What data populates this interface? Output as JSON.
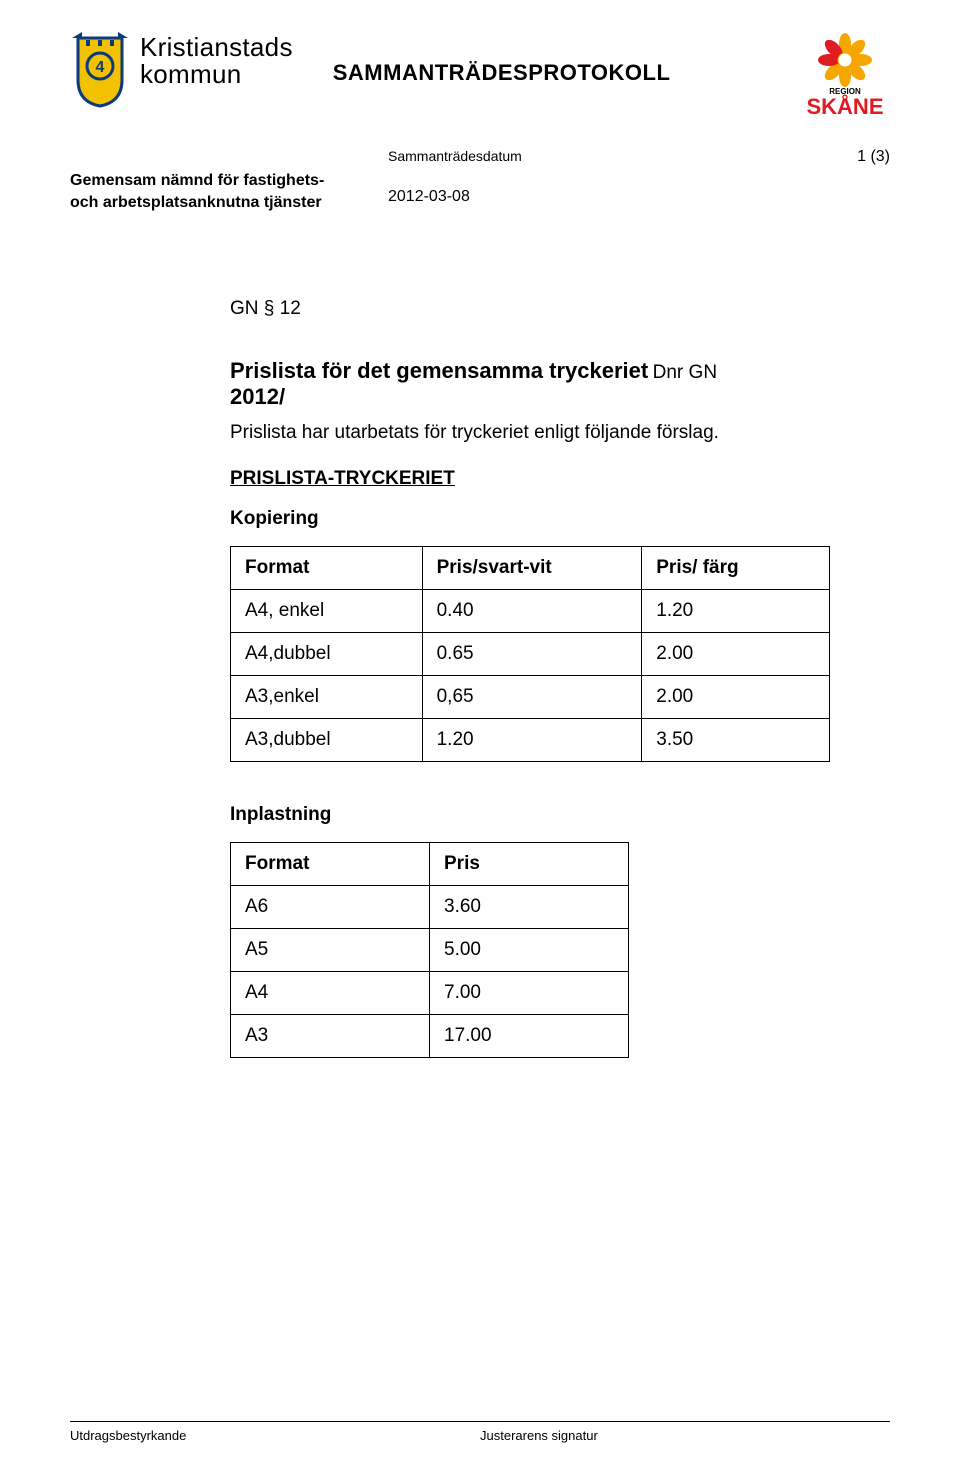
{
  "header": {
    "org_line1": "Kristianstads",
    "org_line2": "kommun",
    "main_title": "SAMMANTRÄDESPROTOKOLL",
    "crest": {
      "shield_fill": "#f2c200",
      "shield_stroke": "#0d3a7a",
      "pennant_left": "#0d3a7a",
      "pennant_right": "#0d3a7a"
    },
    "skane": {
      "petal_colors": [
        "#f6a600",
        "#f6a600",
        "#f6a600",
        "#f6a600",
        "#f6a600",
        "#f6a600",
        "#e01b22",
        "#e01b22"
      ],
      "center_color": "#ffffff",
      "word_color": "#e01b22",
      "region_color": "#000000",
      "region_text": "REGION",
      "word_text": "SKÅNE"
    }
  },
  "meta": {
    "committee_line1": "Gemensam nämnd för fastighets-",
    "committee_line2": "och arbetsplatsanknutna tjänster",
    "date_label": "Sammanträdesdatum",
    "date_value": "2012-03-08",
    "page_count": "1 (3)"
  },
  "body": {
    "item_code": "GN § 12",
    "title": "Prislista för det gemensamma tryckeriet",
    "dnr_label": "Dnr  GN",
    "dnr_year": "2012/",
    "intro": "Prislista har utarbetats för tryckeriet enligt följande förslag.",
    "section_heading": "PRISLISTA-TRYCKERIET",
    "table1": {
      "heading": "Kopiering",
      "columns": [
        "Format",
        "Pris/svart-vit",
        "Pris/ färg"
      ],
      "rows": [
        [
          "A4, enkel",
          "0.40",
          "1.20"
        ],
        [
          "A4,dubbel",
          "0.65",
          "2.00"
        ],
        [
          "A3,enkel",
          "0,65",
          "2.00"
        ],
        [
          "A3,dubbel",
          "1.20",
          "3.50"
        ]
      ]
    },
    "table2": {
      "heading": "Inplastning",
      "columns": [
        "Format",
        "Pris"
      ],
      "rows": [
        [
          "A6",
          " 3.60"
        ],
        [
          "A5",
          " 5.00"
        ],
        [
          "A4",
          " 7.00"
        ],
        [
          "A3",
          "17.00"
        ]
      ]
    }
  },
  "footer": {
    "left": "Utdragsbestyrkande",
    "right": "Justerarens signatur"
  }
}
